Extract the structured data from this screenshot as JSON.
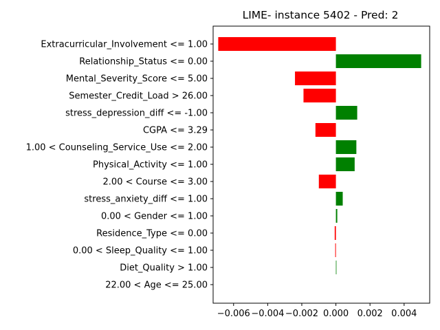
{
  "chart_data": {
    "type": "bar",
    "orientation": "horizontal",
    "title": "LIME- instance 5402 - Pred: 2",
    "xlabel": "",
    "ylabel": "",
    "xlim": [
      -0.0072,
      0.0055
    ],
    "xticks": [
      -0.006,
      -0.004,
      -0.002,
      0.0,
      0.002,
      0.004
    ],
    "xtick_labels": [
      "−0.006",
      "−0.004",
      "−0.002",
      "0.000",
      "0.002",
      "0.004"
    ],
    "grid": false,
    "legend": "none",
    "colors": {
      "positive": "#008000",
      "negative": "#ff0000"
    },
    "categories": [
      "Extracurricular_Involvement <= 1.00",
      "Relationship_Status <= 0.00",
      "Mental_Severity_Score <= 5.00",
      "Semester_Credit_Load > 26.00",
      "stress_depression_diff <= -1.00",
      "CGPA <= 3.29",
      "1.00 < Counseling_Service_Use <= 2.00",
      "Physical_Activity <= 1.00",
      "2.00 < Course <= 3.00",
      "stress_anxiety_diff <= 1.00",
      "0.00 < Gender <= 1.00",
      "Residence_Type <= 0.00",
      "0.00 < Sleep_Quality <= 1.00",
      "Diet_Quality > 1.00",
      "22.00 < Age <= 25.00"
    ],
    "values": [
      -0.0069,
      0.005,
      -0.0024,
      -0.0019,
      0.00125,
      -0.0012,
      0.0012,
      0.0011,
      -0.001,
      0.0004,
      8e-05,
      -7e-05,
      -4e-05,
      3e-05,
      0.0
    ]
  }
}
